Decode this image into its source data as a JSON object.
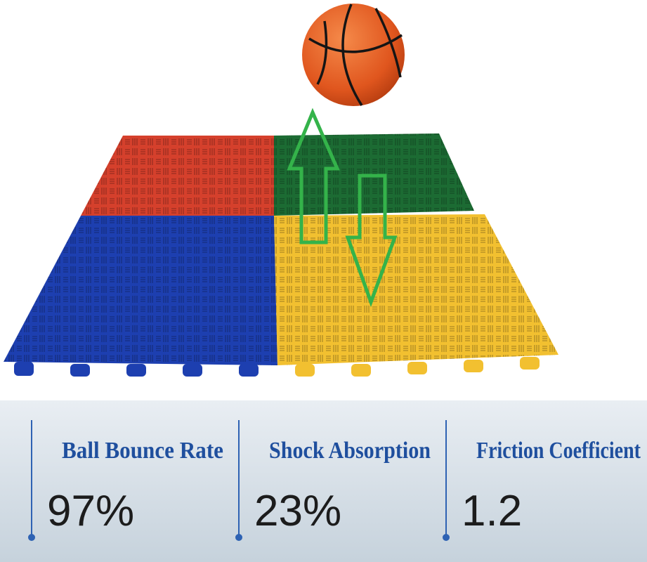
{
  "stats": [
    {
      "label": "Ball Bounce Rate",
      "value": "97%"
    },
    {
      "label": "Shock Absorption",
      "value": "23%"
    },
    {
      "label": "Friction Coefficient",
      "value": "1.2"
    }
  ]
}
